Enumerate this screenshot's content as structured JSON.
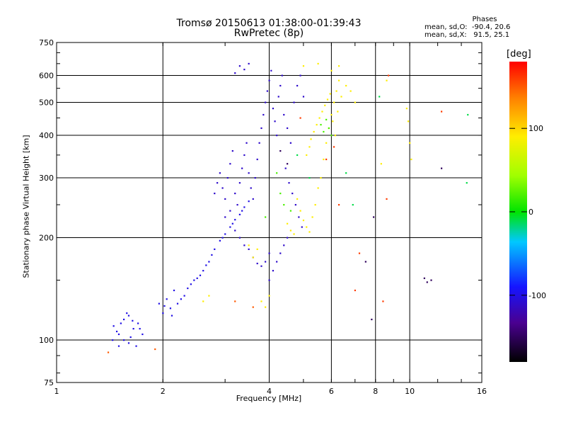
{
  "chart_data": {
    "type": "scatter",
    "title_line1": "Tromsø 20150613 01:38:00-01:39:43",
    "title_line2": "RwPretec (8p)",
    "phases_info": {
      "title": "Phases",
      "line_o": "mean, sd,O:  -90.4, 20.6",
      "line_x": "mean, sd,X:   91.5, 25.1"
    },
    "xlabel": "Frequency [MHz]",
    "ylabel": "Stationary phase Virtual Height [km]",
    "x_scale": "log",
    "y_scale": "log",
    "xlim": [
      1,
      16
    ],
    "ylim": [
      75,
      750
    ],
    "x_ticks": [
      1,
      2,
      4,
      6,
      8,
      10,
      16
    ],
    "x_tick_labels": [
      "1",
      "2",
      "4",
      "6",
      "8",
      "10",
      "16"
    ],
    "y_ticks": [
      75,
      100,
      200,
      300,
      400,
      500,
      600,
      750
    ],
    "y_tick_labels": [
      "75",
      "100",
      "200",
      "300",
      "400",
      "500",
      "600",
      "750"
    ],
    "grid": true,
    "colorbar": {
      "label": "[deg]",
      "range": [
        -180,
        180
      ],
      "ticks": [
        100,
        0,
        -100
      ],
      "tick_labels": [
        "100",
        "0",
        "-100"
      ]
    },
    "series": [
      {
        "phase": -100,
        "points": [
          [
            1.45,
            110
          ],
          [
            1.5,
            104
          ],
          [
            1.55,
            115
          ],
          [
            1.6,
            98
          ],
          [
            1.65,
            108
          ],
          [
            1.7,
            112
          ],
          [
            1.75,
            104
          ],
          [
            1.5,
            96
          ],
          [
            1.55,
            100
          ],
          [
            1.6,
            118
          ],
          [
            1.48,
            106
          ],
          [
            1.62,
            102
          ],
          [
            1.68,
            96
          ],
          [
            1.58,
            120
          ],
          [
            1.52,
            112
          ],
          [
            1.72,
            108
          ],
          [
            1.44,
            100
          ],
          [
            1.64,
            114
          ]
        ]
      },
      {
        "phase": -100,
        "points": [
          [
            1.95,
            128
          ],
          [
            2.0,
            120
          ],
          [
            2.05,
            132
          ],
          [
            2.1,
            124
          ],
          [
            2.15,
            140
          ],
          [
            2.2,
            128
          ],
          [
            2.3,
            135
          ],
          [
            2.4,
            146
          ],
          [
            2.5,
            152
          ],
          [
            2.6,
            160
          ],
          [
            2.7,
            170
          ],
          [
            2.8,
            185
          ],
          [
            2.9,
            196
          ],
          [
            3.0,
            205
          ],
          [
            3.1,
            215
          ],
          [
            3.2,
            226
          ],
          [
            3.3,
            234
          ],
          [
            3.4,
            246
          ],
          [
            3.5,
            256
          ],
          [
            2.12,
            118
          ],
          [
            2.25,
            132
          ],
          [
            2.35,
            142
          ],
          [
            2.55,
            155
          ],
          [
            2.75,
            178
          ],
          [
            2.95,
            200
          ],
          [
            3.15,
            220
          ],
          [
            3.35,
            240
          ],
          [
            2.02,
            126
          ],
          [
            2.45,
            150
          ],
          [
            2.65,
            166
          ]
        ]
      },
      {
        "phase": -110,
        "points": [
          [
            2.8,
            270
          ],
          [
            2.85,
            290
          ],
          [
            2.9,
            310
          ],
          [
            2.95,
            280
          ],
          [
            3.0,
            260
          ],
          [
            3.05,
            300
          ],
          [
            3.1,
            330
          ],
          [
            3.15,
            360
          ],
          [
            3.2,
            270
          ],
          [
            3.25,
            250
          ],
          [
            3.3,
            290
          ],
          [
            3.35,
            320
          ],
          [
            3.4,
            350
          ],
          [
            3.45,
            380
          ],
          [
            3.5,
            310
          ],
          [
            3.55,
            280
          ],
          [
            3.6,
            260
          ],
          [
            3.65,
            300
          ],
          [
            3.7,
            340
          ],
          [
            3.75,
            380
          ],
          [
            3.8,
            420
          ],
          [
            3.85,
            460
          ],
          [
            3.9,
            500
          ],
          [
            3.95,
            540
          ],
          [
            4.0,
            580
          ],
          [
            4.05,
            620
          ],
          [
            4.1,
            480
          ],
          [
            4.15,
            440
          ],
          [
            4.2,
            400
          ],
          [
            4.25,
            520
          ],
          [
            4.3,
            560
          ],
          [
            4.35,
            600
          ],
          [
            3.0,
            230
          ],
          [
            3.1,
            240
          ],
          [
            3.2,
            210
          ],
          [
            3.3,
            200
          ],
          [
            3.4,
            190
          ],
          [
            3.5,
            185
          ],
          [
            3.6,
            175
          ],
          [
            3.7,
            168
          ],
          [
            3.8,
            165
          ],
          [
            3.9,
            170
          ],
          [
            4.0,
            180
          ],
          [
            3.3,
            640
          ],
          [
            3.4,
            625
          ],
          [
            3.5,
            650
          ],
          [
            3.2,
            610
          ],
          [
            4.4,
            460
          ],
          [
            4.5,
            420
          ],
          [
            4.6,
            380
          ],
          [
            4.7,
            500
          ],
          [
            4.8,
            560
          ],
          [
            4.9,
            600
          ],
          [
            5.0,
            520
          ],
          [
            4.45,
            320
          ],
          [
            4.55,
            290
          ],
          [
            4.65,
            270
          ],
          [
            4.75,
            250
          ],
          [
            4.85,
            230
          ],
          [
            4.95,
            215
          ],
          [
            4.0,
            150
          ],
          [
            4.1,
            160
          ],
          [
            4.2,
            170
          ],
          [
            4.3,
            180
          ],
          [
            4.4,
            190
          ],
          [
            4.5,
            200
          ]
        ]
      },
      {
        "phase": 90,
        "points": [
          [
            4.8,
            260
          ],
          [
            4.9,
            240
          ],
          [
            5.0,
            225
          ],
          [
            5.1,
            215
          ],
          [
            5.2,
            208
          ],
          [
            5.3,
            230
          ],
          [
            5.4,
            250
          ],
          [
            5.5,
            280
          ],
          [
            5.6,
            300
          ],
          [
            5.7,
            340
          ],
          [
            5.8,
            380
          ],
          [
            5.9,
            420
          ],
          [
            6.0,
            460
          ],
          [
            6.1,
            500
          ],
          [
            6.2,
            540
          ],
          [
            6.3,
            580
          ],
          [
            5.25,
            390
          ],
          [
            5.35,
            410
          ],
          [
            5.45,
            430
          ],
          [
            5.55,
            450
          ],
          [
            5.65,
            470
          ],
          [
            5.75,
            490
          ],
          [
            5.85,
            510
          ],
          [
            5.95,
            530
          ],
          [
            6.05,
            440
          ],
          [
            6.15,
            400
          ],
          [
            6.25,
            470
          ],
          [
            6.4,
            520
          ],
          [
            6.6,
            560
          ],
          [
            6.8,
            540
          ],
          [
            7.0,
            500
          ],
          [
            5.1,
            350
          ],
          [
            5.2,
            370
          ],
          [
            4.6,
            210
          ],
          [
            4.7,
            205
          ],
          [
            4.5,
            220
          ],
          [
            5.0,
            640
          ],
          [
            5.5,
            650
          ],
          [
            6.0,
            620
          ],
          [
            6.3,
            640
          ],
          [
            3.8,
            130
          ],
          [
            3.9,
            125
          ],
          [
            4.0,
            135
          ],
          [
            3.6,
            175
          ],
          [
            3.7,
            185
          ],
          [
            3.5,
            190
          ],
          [
            2.6,
            130
          ],
          [
            2.7,
            135
          ],
          [
            9.8,
            480
          ],
          [
            9.9,
            440
          ],
          [
            10.0,
            380
          ],
          [
            10.1,
            340
          ],
          [
            8.6,
            580
          ],
          [
            8.3,
            330
          ]
        ]
      },
      {
        "phase": 20,
        "points": [
          [
            5.6,
            430
          ],
          [
            5.7,
            410
          ],
          [
            5.8,
            445
          ],
          [
            5.9,
            420
          ],
          [
            6.0,
            400
          ],
          [
            4.3,
            270
          ],
          [
            4.4,
            250
          ],
          [
            4.6,
            240
          ],
          [
            4.2,
            310
          ],
          [
            3.9,
            230
          ]
        ]
      },
      {
        "phase": 160,
        "points": [
          [
            6.3,
            250
          ],
          [
            7.0,
            140
          ],
          [
            8.4,
            130
          ],
          [
            12.3,
            470
          ],
          [
            7.2,
            180
          ],
          [
            8.7,
            600
          ],
          [
            8.6,
            260
          ],
          [
            5.8,
            340
          ],
          [
            6.1,
            370
          ],
          [
            4.9,
            450
          ]
        ]
      },
      {
        "phase": -150,
        "points": [
          [
            12.3,
            320
          ],
          [
            11.0,
            152
          ],
          [
            11.2,
            148
          ],
          [
            11.5,
            150
          ],
          [
            7.5,
            170
          ],
          [
            7.8,
            115
          ],
          [
            7.9,
            230
          ],
          [
            4.3,
            360
          ],
          [
            4.5,
            330
          ]
        ]
      },
      {
        "phase": -10,
        "points": [
          [
            14.5,
            290
          ],
          [
            14.6,
            460
          ],
          [
            4.8,
            350
          ],
          [
            5.2,
            300
          ],
          [
            8.2,
            520
          ],
          [
            6.6,
            310
          ],
          [
            6.9,
            250
          ]
        ]
      },
      {
        "phase": 150,
        "points": [
          [
            1.4,
            92
          ],
          [
            1.9,
            94
          ],
          [
            3.6,
            125
          ],
          [
            3.2,
            130
          ]
        ]
      }
    ]
  }
}
